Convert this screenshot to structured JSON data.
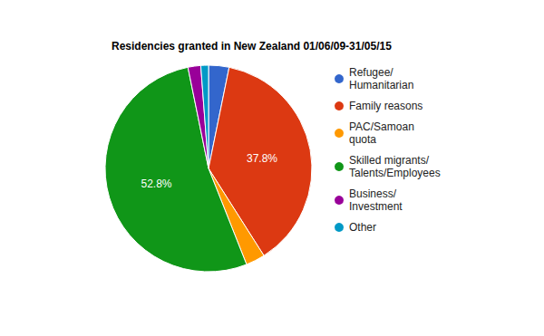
{
  "chart_data": {
    "type": "pie",
    "title": "Residencies granted in New Zealand 01/06/09-31/05/15",
    "categories": [
      "Refugee/\nHumanitarian",
      "Family reasons",
      "PAC/Samoan\nquota",
      "Skilled migrants/\nTalents/Employees",
      "Business/\nInvestment",
      "Other"
    ],
    "values": [
      3.2,
      37.8,
      3.0,
      52.8,
      2.0,
      1.2
    ],
    "value_labels": [
      null,
      "37.8%",
      null,
      "52.8%",
      null,
      null
    ],
    "colors": [
      "#3366cc",
      "#dc3912",
      "#ff9900",
      "#109618",
      "#990099",
      "#0099c6"
    ],
    "data_labels": true,
    "legend": "right"
  }
}
